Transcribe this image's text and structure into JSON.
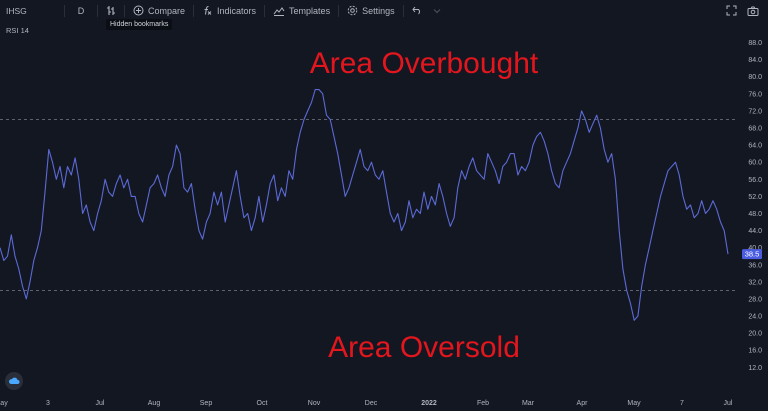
{
  "toolbar": {
    "symbol": "IHSG",
    "interval": "D",
    "compare_label": "Compare",
    "indicators_label": "Indicators",
    "templates_label": "Templates",
    "settings_label": "Settings",
    "icons": [
      "bar-style-icon",
      "plus-circle-icon",
      "indicators-icon",
      "templates-icon",
      "gear-icon",
      "undo-icon",
      "redo-icon",
      "fullscreen-icon",
      "camera-icon"
    ]
  },
  "tooltip": {
    "text": "Hidden bookmarks"
  },
  "indicator": {
    "label": "RSI 14"
  },
  "annotations": {
    "overbought": "Area Overbought",
    "oversold": "Area Oversold"
  },
  "colors": {
    "background": "#131722",
    "line": "#5b6ad6",
    "annotation": "#e4161d",
    "badge": "#4a5de0",
    "axis_text": "#b2b5be"
  },
  "chart_data": {
    "type": "line",
    "title": "RSI 14",
    "series": [
      {
        "name": "RSI 14",
        "values": [
          40,
          37,
          38,
          43,
          38,
          35,
          31,
          28,
          32,
          37,
          40,
          44,
          53,
          63,
          60,
          56,
          59,
          54,
          59,
          57,
          61,
          56,
          48,
          50,
          46,
          44,
          48,
          51,
          56,
          53,
          52,
          55,
          57,
          54,
          56,
          52,
          52,
          48,
          46,
          50,
          54,
          55,
          57,
          54,
          52,
          57,
          59,
          64,
          62,
          54,
          53,
          55,
          49,
          44,
          42,
          46,
          48,
          53,
          50,
          53,
          46,
          50,
          54,
          58,
          52,
          47,
          48,
          44,
          47,
          52,
          46,
          50,
          55,
          57,
          51,
          54,
          52,
          58,
          56,
          63,
          67,
          70,
          72,
          74,
          77,
          77,
          76,
          71,
          70,
          66,
          62,
          57,
          52,
          54,
          57,
          60,
          63,
          59,
          58,
          60,
          57,
          56,
          58,
          53,
          48,
          46,
          48,
          44,
          46,
          51,
          47,
          49,
          48,
          53,
          49,
          52,
          50,
          55,
          52,
          48,
          45,
          47,
          54,
          58,
          56,
          59,
          61,
          58,
          57,
          56,
          62,
          60,
          58,
          55,
          59,
          60,
          62,
          62,
          57,
          59,
          58,
          60,
          64,
          66,
          67,
          65,
          62,
          58,
          55,
          54,
          58,
          60,
          62,
          65,
          68,
          72,
          70,
          67,
          69,
          71,
          68,
          63,
          60,
          62,
          56,
          44,
          35,
          30,
          27,
          23,
          24,
          31,
          36,
          40,
          44,
          48,
          52,
          55,
          58,
          59,
          60,
          57,
          52,
          49,
          50,
          47,
          48,
          51,
          48,
          49,
          51,
          49,
          46,
          44,
          38.5
        ]
      }
    ],
    "x_ticks": [
      "ay",
      "3",
      "Jul",
      "Aug",
      "Sep",
      "Oct",
      "Nov",
      "Dec",
      "2022",
      "Feb",
      "Mar",
      "Apr",
      "May",
      "7",
      "Jul"
    ],
    "y_ticks": [
      "88.0",
      "84.0",
      "80.0",
      "76.0",
      "72.0",
      "68.0",
      "64.0",
      "60.0",
      "56.0",
      "52.0",
      "48.0",
      "44.0",
      "40.0",
      "36.0",
      "32.0",
      "28.0",
      "24.0",
      "20.0",
      "16.0",
      "12.0"
    ],
    "ylim": [
      10.2,
      90.0
    ],
    "reference_lines": [
      70,
      30
    ],
    "last_value": "38.5",
    "grid": false
  }
}
